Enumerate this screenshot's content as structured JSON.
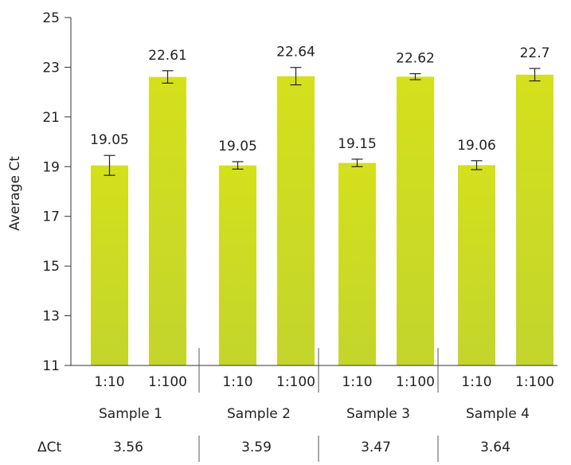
{
  "chart_data": {
    "type": "bar",
    "ylabel": "Average Ct",
    "ylim": [
      11,
      25
    ],
    "yticks": [
      11,
      13,
      15,
      17,
      19,
      21,
      23,
      25
    ],
    "grid": false,
    "bar_color": "#cddc1e",
    "groups": [
      {
        "name": "Sample 1",
        "delta_ct": "3.56",
        "bars": [
          {
            "category": "1:10",
            "value": 19.05,
            "label": "19.05",
            "error": 0.4
          },
          {
            "category": "1:100",
            "value": 22.61,
            "label": "22.61",
            "error": 0.25
          }
        ]
      },
      {
        "name": "Sample 2",
        "delta_ct": "3.59",
        "bars": [
          {
            "category": "1:10",
            "value": 19.05,
            "label": "19.05",
            "error": 0.15
          },
          {
            "category": "1:100",
            "value": 22.64,
            "label": "22.64",
            "error": 0.35
          }
        ]
      },
      {
        "name": "Sample 3",
        "delta_ct": "3.47",
        "bars": [
          {
            "category": "1:10",
            "value": 19.15,
            "label": "19.15",
            "error": 0.15
          },
          {
            "category": "1:100",
            "value": 22.62,
            "label": "22.62",
            "error": 0.12
          }
        ]
      },
      {
        "name": "Sample 4",
        "delta_ct": "3.64",
        "bars": [
          {
            "category": "1:10",
            "value": 19.06,
            "label": "19.06",
            "error": 0.18
          },
          {
            "category": "1:100",
            "value": 22.7,
            "label": "22.7",
            "error": 0.25
          }
        ]
      }
    ],
    "delta_ct_label": "ΔCt"
  }
}
